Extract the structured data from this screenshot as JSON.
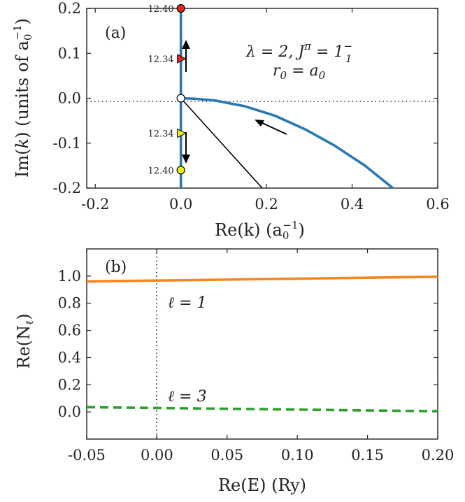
{
  "chart_data": [
    {
      "type": "line",
      "panel_label": "(a)",
      "xlabel": "Re(k) (a₀⁻¹)",
      "ylabel": "Im(k) (units of a₀⁻¹)",
      "xlim": [
        -0.22,
        0.6
      ],
      "ylim": [
        -0.2,
        0.2
      ],
      "xticks": [
        "-0.2",
        "0.0",
        "0.2",
        "0.4",
        "0.6"
      ],
      "yticks": [
        "0.2",
        "0.1",
        "0.0",
        "-0.1",
        "-0.2"
      ],
      "annotations": [
        "λ = 2, J^π = 1₁⁻",
        "r₀ = a₀"
      ],
      "series": [
        {
          "values_x": [
            0.495,
            0.43,
            0.36,
            0.29,
            0.22,
            0.15,
            0.08,
            0.03,
            0.0
          ],
          "values_y": [
            -0.2,
            -0.15,
            -0.106,
            -0.069,
            -0.039,
            -0.018,
            -0.005,
            -0.001,
            0.0
          ]
        },
        {
          "values_x": [
            0.0,
            0.0
          ],
          "values_y": [
            -0.2,
            0.2
          ]
        }
      ],
      "line_x": [
        0.0,
        0.19
      ],
      "line_y": [
        0.0,
        -0.2
      ],
      "markers": [
        {
          "x": 0.0,
          "y": 0.2,
          "label": "12.40",
          "shape": "circle",
          "color": "#e8251b"
        },
        {
          "x": 0.0,
          "y": 0.088,
          "label": "12.34",
          "shape": "triangle",
          "color": "#e8251b"
        },
        {
          "x": 0.0,
          "y": -0.078,
          "label": "12.34",
          "shape": "triangle",
          "color": "#f2ef19"
        },
        {
          "x": 0.0,
          "y": -0.16,
          "label": "12.40",
          "shape": "circle",
          "color": "#f2ef19"
        },
        {
          "x": 0.0,
          "y": 0.0,
          "label": "",
          "shape": "circle",
          "color": "#ffffff"
        }
      ],
      "colors": {
        "curve": "#2878b5"
      }
    },
    {
      "type": "line",
      "panel_label": "(b)",
      "xlabel": "Re(E) (Ry)",
      "ylabel": "Re(N_ℓ)",
      "xlim": [
        -0.05,
        0.2
      ],
      "ylim": [
        -0.2,
        1.2
      ],
      "xticks": [
        "-0.05",
        "0.00",
        "0.05",
        "0.10",
        "0.15",
        "0.20"
      ],
      "yticks": [
        "1.0",
        "0.8",
        "0.6",
        "0.4",
        "0.2",
        "0.0"
      ],
      "annotations": [
        "ℓ = 1",
        "ℓ = 3"
      ],
      "series": [
        {
          "x": [
            -0.05,
            0.2
          ],
          "y": [
            0.96,
            0.995
          ],
          "color": "#f5861f",
          "dash": false
        },
        {
          "x": [
            -0.05,
            0.2
          ],
          "y": [
            0.035,
            0.005
          ],
          "color": "#2ca02c",
          "dash": true
        }
      ]
    }
  ]
}
